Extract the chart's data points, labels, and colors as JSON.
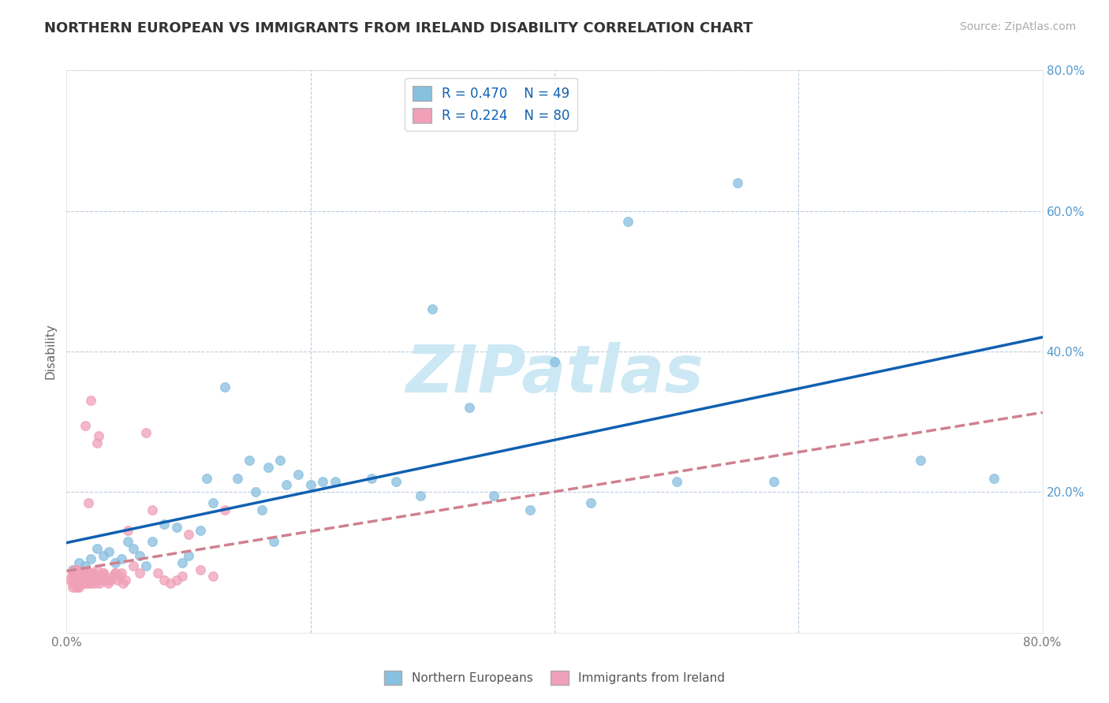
{
  "title": "NORTHERN EUROPEAN VS IMMIGRANTS FROM IRELAND DISABILITY CORRELATION CHART",
  "source": "Source: ZipAtlas.com",
  "ylabel": "Disability",
  "xlim": [
    0,
    0.8
  ],
  "ylim": [
    0,
    0.8
  ],
  "xticks": [
    0.0,
    0.2,
    0.4,
    0.6,
    0.8
  ],
  "yticks": [
    0.0,
    0.2,
    0.4,
    0.6,
    0.8
  ],
  "legend_r_blue": "R = 0.470",
  "legend_n_blue": "N = 49",
  "legend_r_pink": "R = 0.224",
  "legend_n_pink": "N = 80",
  "legend_label_blue": "Northern Europeans",
  "legend_label_pink": "Immigrants from Ireland",
  "blue_color": "#88c0e0",
  "pink_color": "#f0a0b8",
  "blue_line_color": "#1060b0",
  "pink_line_color": "#d08090",
  "watermark": "ZIPatlas",
  "watermark_color": "#cce8f4",
  "blue_scatter_x": [
    0.005,
    0.01,
    0.015,
    0.02,
    0.025,
    0.03,
    0.035,
    0.04,
    0.045,
    0.05,
    0.055,
    0.06,
    0.065,
    0.07,
    0.08,
    0.09,
    0.095,
    0.1,
    0.11,
    0.115,
    0.12,
    0.13,
    0.14,
    0.15,
    0.155,
    0.16,
    0.165,
    0.17,
    0.175,
    0.18,
    0.19,
    0.2,
    0.21,
    0.22,
    0.25,
    0.27,
    0.29,
    0.3,
    0.33,
    0.35,
    0.38,
    0.4,
    0.43,
    0.46,
    0.5,
    0.55,
    0.58,
    0.7,
    0.76
  ],
  "blue_scatter_y": [
    0.09,
    0.1,
    0.095,
    0.105,
    0.12,
    0.11,
    0.115,
    0.1,
    0.105,
    0.13,
    0.12,
    0.11,
    0.095,
    0.13,
    0.155,
    0.15,
    0.1,
    0.11,
    0.145,
    0.22,
    0.185,
    0.35,
    0.22,
    0.245,
    0.2,
    0.175,
    0.235,
    0.13,
    0.245,
    0.21,
    0.225,
    0.21,
    0.215,
    0.215,
    0.22,
    0.215,
    0.195,
    0.46,
    0.32,
    0.195,
    0.175,
    0.385,
    0.185,
    0.585,
    0.215,
    0.64,
    0.215,
    0.245,
    0.22
  ],
  "pink_scatter_x": [
    0.003,
    0.004,
    0.005,
    0.005,
    0.006,
    0.006,
    0.007,
    0.007,
    0.008,
    0.008,
    0.009,
    0.009,
    0.01,
    0.01,
    0.011,
    0.011,
    0.012,
    0.012,
    0.013,
    0.013,
    0.014,
    0.014,
    0.015,
    0.015,
    0.016,
    0.016,
    0.017,
    0.017,
    0.018,
    0.018,
    0.019,
    0.02,
    0.02,
    0.021,
    0.022,
    0.022,
    0.023,
    0.024,
    0.025,
    0.025,
    0.026,
    0.027,
    0.028,
    0.029,
    0.03,
    0.032,
    0.034,
    0.036,
    0.038,
    0.04,
    0.042,
    0.044,
    0.046,
    0.048,
    0.05,
    0.055,
    0.06,
    0.065,
    0.07,
    0.075,
    0.08,
    0.085,
    0.09,
    0.095,
    0.1,
    0.11,
    0.12,
    0.13,
    0.01,
    0.015,
    0.02,
    0.025,
    0.03,
    0.035,
    0.04,
    0.045,
    0.005,
    0.008,
    0.012,
    0.018
  ],
  "pink_scatter_y": [
    0.075,
    0.08,
    0.07,
    0.085,
    0.075,
    0.09,
    0.07,
    0.08,
    0.065,
    0.085,
    0.075,
    0.09,
    0.07,
    0.08,
    0.075,
    0.085,
    0.07,
    0.075,
    0.08,
    0.085,
    0.07,
    0.075,
    0.08,
    0.085,
    0.07,
    0.075,
    0.08,
    0.085,
    0.07,
    0.075,
    0.08,
    0.07,
    0.085,
    0.075,
    0.08,
    0.085,
    0.07,
    0.075,
    0.08,
    0.27,
    0.28,
    0.07,
    0.075,
    0.08,
    0.085,
    0.075,
    0.07,
    0.075,
    0.08,
    0.085,
    0.075,
    0.08,
    0.07,
    0.075,
    0.145,
    0.095,
    0.085,
    0.285,
    0.175,
    0.085,
    0.075,
    0.07,
    0.075,
    0.08,
    0.14,
    0.09,
    0.08,
    0.175,
    0.065,
    0.295,
    0.33,
    0.09,
    0.085,
    0.075,
    0.085,
    0.085,
    0.065,
    0.065,
    0.075,
    0.185
  ]
}
